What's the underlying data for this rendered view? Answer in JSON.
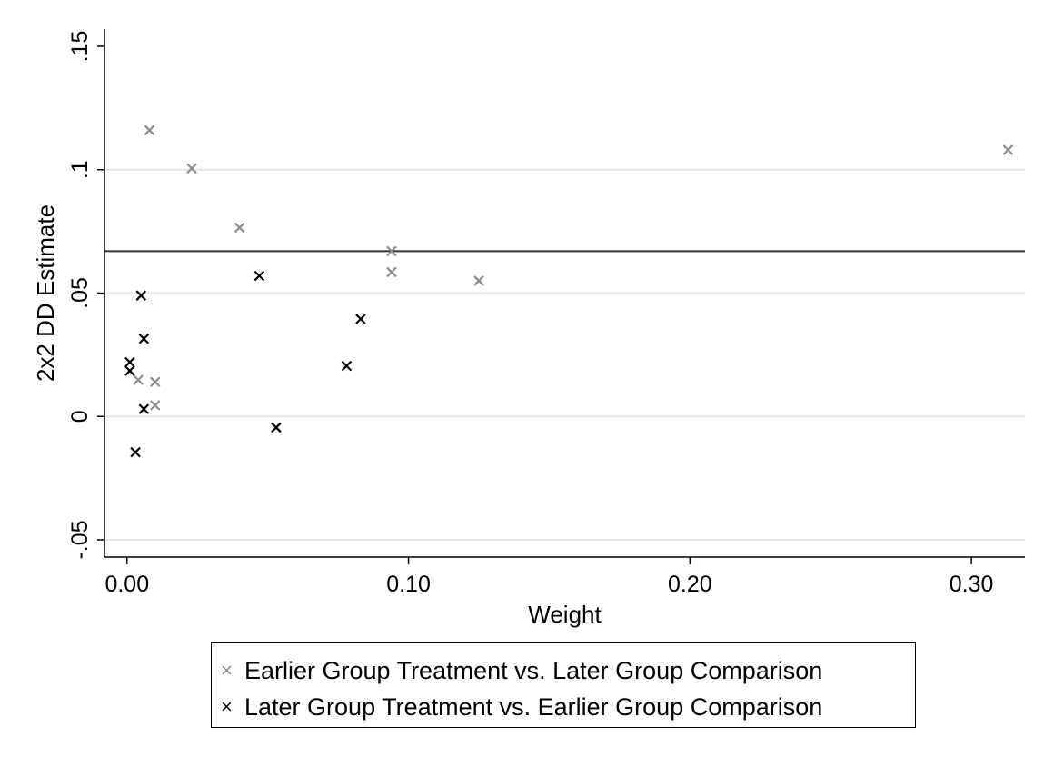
{
  "chart_data": {
    "type": "scatter",
    "xlabel": "Weight",
    "ylabel": "2x2 DD Estimate",
    "xlim": [
      -0.008,
      0.319
    ],
    "ylim": [
      -0.057,
      0.157
    ],
    "x_ticks": [
      0.0,
      0.1,
      0.2,
      0.3
    ],
    "x_tick_labels": [
      "0.00",
      "0.10",
      "0.20",
      "0.30"
    ],
    "y_ticks": [
      -0.05,
      0,
      0.05,
      0.1,
      0.15
    ],
    "y_tick_labels": [
      "-.05",
      "0",
      ".05",
      ".1",
      ".15"
    ],
    "grid": true,
    "reference_line_y": 0.067,
    "legend_placement": "bottom",
    "series": [
      {
        "name": "Earlier Group Treatment vs. Later Group Comparison",
        "color": "#8c8c8c",
        "marker": "x",
        "points": [
          {
            "x": 0.008,
            "y": 0.116
          },
          {
            "x": 0.023,
            "y": 0.1005
          },
          {
            "x": 0.04,
            "y": 0.0765
          },
          {
            "x": 0.094,
            "y": 0.067
          },
          {
            "x": 0.094,
            "y": 0.0585
          },
          {
            "x": 0.125,
            "y": 0.055
          },
          {
            "x": 0.004,
            "y": 0.0148
          },
          {
            "x": 0.01,
            "y": 0.014
          },
          {
            "x": 0.01,
            "y": 0.0045
          },
          {
            "x": 0.313,
            "y": 0.108
          }
        ]
      },
      {
        "name": "Later Group Treatment vs. Earlier Group Comparison",
        "color": "#000000",
        "marker": "x",
        "points": [
          {
            "x": 0.047,
            "y": 0.057
          },
          {
            "x": 0.005,
            "y": 0.049
          },
          {
            "x": 0.083,
            "y": 0.0395
          },
          {
            "x": 0.006,
            "y": 0.0315
          },
          {
            "x": 0.001,
            "y": 0.022
          },
          {
            "x": 0.001,
            "y": 0.0185
          },
          {
            "x": 0.078,
            "y": 0.0205
          },
          {
            "x": 0.006,
            "y": 0.003
          },
          {
            "x": 0.053,
            "y": -0.0045
          },
          {
            "x": 0.003,
            "y": -0.0145
          }
        ]
      }
    ]
  }
}
